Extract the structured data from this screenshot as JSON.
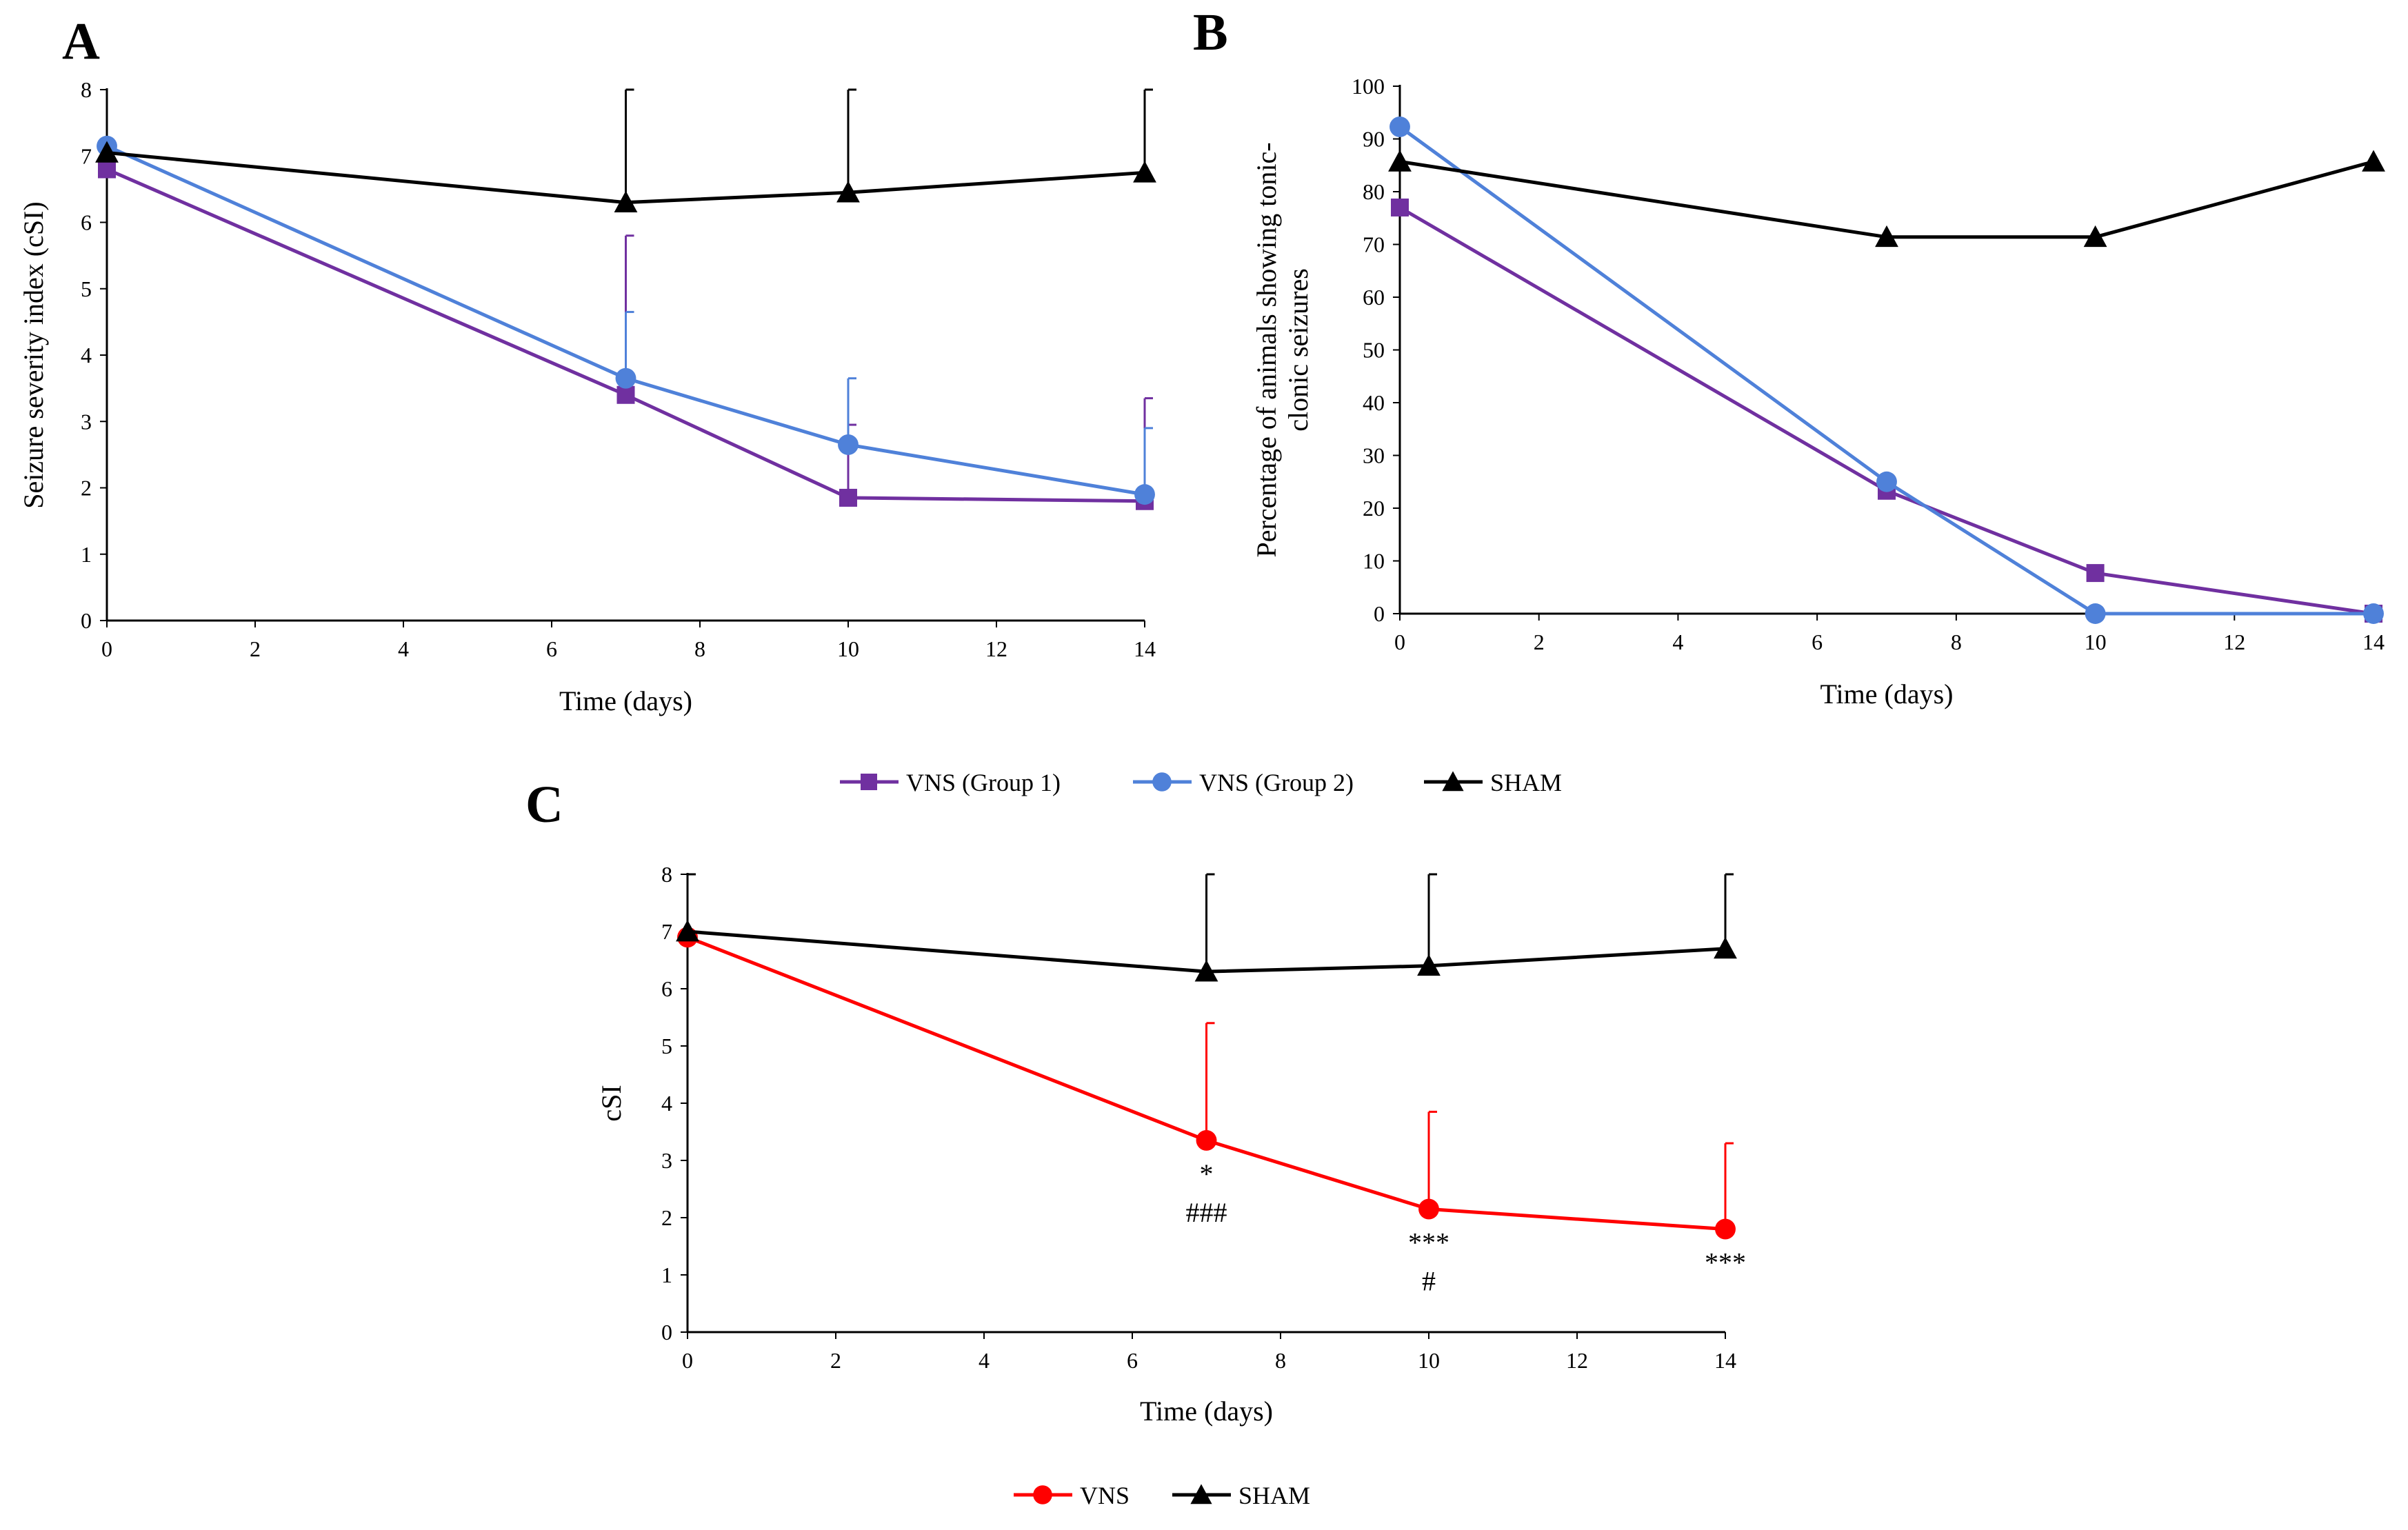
{
  "legend_ab": [
    {
      "label": "VNS (Group 1)",
      "color": "#7030A0",
      "marker": "square"
    },
    {
      "label": "VNS (Group 2)",
      "color": "#4F81D9",
      "marker": "circle"
    },
    {
      "label": "SHAM",
      "color": "#000000",
      "marker": "triangle"
    }
  ],
  "legend_c": [
    {
      "label": "VNS",
      "color": "#FF0000",
      "marker": "circle"
    },
    {
      "label": "SHAM",
      "color": "#000000",
      "marker": "triangle"
    }
  ],
  "chart_data": [
    {
      "id": "A",
      "panel_label": "A",
      "type": "line",
      "xlabel": "Time (days)",
      "ylabel": "Seizure severity index (cSI)",
      "xlim": [
        0,
        14
      ],
      "ylim": [
        0,
        8
      ],
      "xticks": [
        0,
        2,
        4,
        6,
        8,
        10,
        12,
        14
      ],
      "yticks": [
        0,
        1,
        2,
        3,
        4,
        5,
        6,
        7,
        8
      ],
      "x": [
        0,
        7,
        10,
        14
      ],
      "series": [
        {
          "name": "VNS (Group 1)",
          "color": "#7030A0",
          "marker": "square",
          "values": [
            6.8,
            3.4,
            1.85,
            1.8
          ],
          "error_up": [
            0,
            2.4,
            1.1,
            1.55
          ]
        },
        {
          "name": "VNS (Group 2)",
          "color": "#4F81D9",
          "marker": "circle",
          "values": [
            7.15,
            3.65,
            2.65,
            1.9
          ],
          "error_up": [
            0,
            1.0,
            1.0,
            1.0
          ]
        },
        {
          "name": "SHAM",
          "color": "#000000",
          "marker": "triangle",
          "values": [
            7.05,
            6.3,
            6.45,
            6.75
          ],
          "error_up": [
            1.0,
            1.7,
            1.55,
            1.25
          ]
        }
      ],
      "annotations": []
    },
    {
      "id": "B",
      "panel_label": "B",
      "type": "line",
      "xlabel": "Time (days)",
      "ylabel_lines": [
        "Percentage of animals showing tonic-",
        "clonic seizures"
      ],
      "xlim": [
        0,
        14
      ],
      "ylim": [
        0,
        100
      ],
      "xticks": [
        0,
        2,
        4,
        6,
        8,
        10,
        12,
        14
      ],
      "yticks": [
        0,
        10,
        20,
        30,
        40,
        50,
        60,
        70,
        80,
        90,
        100
      ],
      "x": [
        0,
        7,
        10,
        14
      ],
      "series": [
        {
          "name": "VNS (Group 1)",
          "color": "#7030A0",
          "marker": "square",
          "values": [
            77,
            23.3,
            7.7,
            0
          ]
        },
        {
          "name": "VNS (Group 2)",
          "color": "#4F81D9",
          "marker": "circle",
          "values": [
            92.3,
            25,
            0,
            0
          ]
        },
        {
          "name": "SHAM",
          "color": "#000000",
          "marker": "triangle",
          "values": [
            85.7,
            71.4,
            71.4,
            85.7
          ]
        }
      ],
      "annotations": []
    },
    {
      "id": "C",
      "panel_label": "C",
      "type": "line",
      "xlabel": "Time (days)",
      "ylabel": "cSI",
      "xlim": [
        0,
        14
      ],
      "ylim": [
        0,
        8
      ],
      "xticks": [
        0,
        2,
        4,
        6,
        8,
        10,
        12,
        14
      ],
      "yticks": [
        0,
        1,
        2,
        3,
        4,
        5,
        6,
        7,
        8
      ],
      "x": [
        0,
        7,
        10,
        14
      ],
      "series": [
        {
          "name": "VNS",
          "color": "#FF0000",
          "marker": "circle",
          "values": [
            6.9,
            3.35,
            2.15,
            1.8
          ],
          "error_up": [
            0,
            2.05,
            1.7,
            1.5
          ]
        },
        {
          "name": "SHAM",
          "color": "#000000",
          "marker": "triangle",
          "values": [
            7.0,
            6.3,
            6.4,
            6.7
          ],
          "error_up": [
            1.0,
            1.7,
            1.6,
            1.3
          ]
        }
      ],
      "annotations": [
        {
          "x": 7,
          "lines": [
            "*",
            "###"
          ]
        },
        {
          "x": 10,
          "lines": [
            "***",
            "#"
          ]
        },
        {
          "x": 14,
          "lines": [
            "***"
          ]
        }
      ]
    }
  ]
}
